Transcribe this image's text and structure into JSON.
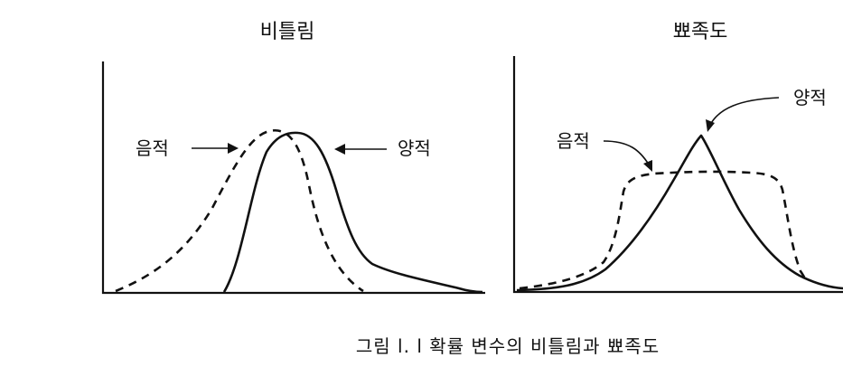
{
  "panels": {
    "skewness": {
      "title": "비틀림",
      "negative_label": "음적",
      "positive_label": "양적"
    },
    "kurtosis": {
      "title": "뾰족도",
      "negative_label": "음적",
      "positive_label": "양적"
    }
  },
  "caption": "그림 l. l  확률 변수의 비틀림과 뾰족도"
}
